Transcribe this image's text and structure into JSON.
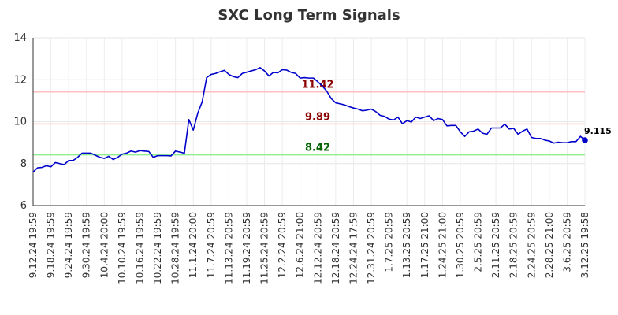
{
  "chart_data": {
    "type": "line",
    "title": "SXC Long Term Signals",
    "xlabel": "",
    "ylabel": "",
    "ylim": [
      6,
      14
    ],
    "yticks": [
      6,
      8,
      10,
      12,
      14
    ],
    "grid": true,
    "x_tick_labels": [
      "9.12.24 19:59",
      "9.18.24 19:59",
      "9.24.24 19:59",
      "9.30.24 19:59",
      "10.4.24 20:00",
      "10.10.24 19:59",
      "10.16.24 19:59",
      "10.22.24 19:59",
      "10.28.24 19:59",
      "11.1.24 20:00",
      "11.7.24 20:59",
      "11.13.24 20:59",
      "11.19.24 20:59",
      "11.25.24 20:59",
      "12.2.24 20:59",
      "12.6.24 21:00",
      "12.12.24 20:59",
      "12.18.24 20:59",
      "12.24.24 17:59",
      "12.31.24 20:59",
      "1.7.25 20:59",
      "1.13.25 20:59",
      "1.17.25 21:00",
      "1.24.25 21:00",
      "1.30.25 20:59",
      "2.5.25 20:59",
      "2.11.25 20:59",
      "2.18.25 20:59",
      "2.24.25 20:59",
      "2.28.25 21:00",
      "3.6.25 20:59",
      "3.12.25 19:58"
    ],
    "series": [
      {
        "color": "#0000cc",
        "values": [
          7.6,
          7.8,
          7.82,
          7.9,
          7.85,
          8.05,
          8.0,
          7.95,
          8.15,
          8.15,
          8.3,
          8.5,
          8.5,
          8.5,
          8.4,
          8.3,
          8.25,
          8.35,
          8.2,
          8.3,
          8.45,
          8.5,
          8.6,
          8.55,
          8.62,
          8.6,
          8.58,
          8.3,
          8.38,
          8.38,
          8.38,
          8.37,
          8.6,
          8.55,
          8.5,
          10.1,
          9.6,
          10.4,
          10.95,
          12.1,
          12.25,
          12.3,
          12.38,
          12.45,
          12.25,
          12.15,
          12.1,
          12.3,
          12.36,
          12.42,
          12.48,
          12.58,
          12.42,
          12.18,
          12.35,
          12.33,
          12.48,
          12.46,
          12.35,
          12.3,
          12.08,
          12.1,
          12.08,
          12.08,
          11.9,
          11.7,
          11.45,
          11.1,
          10.9,
          10.85,
          10.8,
          10.72,
          10.65,
          10.6,
          10.52,
          10.55,
          10.6,
          10.48,
          10.3,
          10.25,
          10.12,
          10.08,
          10.22,
          9.9,
          10.05,
          9.98,
          10.22,
          10.15,
          10.22,
          10.28,
          10.05,
          10.15,
          10.1,
          9.8,
          9.82,
          9.82,
          9.52,
          9.3,
          9.52,
          9.55,
          9.65,
          9.45,
          9.4,
          9.7,
          9.7,
          9.7,
          9.88,
          9.65,
          9.68,
          9.4,
          9.55,
          9.65,
          9.25,
          9.2,
          9.2,
          9.12,
          9.08,
          8.98,
          9.02,
          9.0,
          9.0,
          9.05,
          9.05,
          9.3,
          9.115
        ]
      }
    ],
    "levels": [
      {
        "value": 11.42,
        "label": "11.42",
        "line_color": "#ffc0c0",
        "text_color": "#8b0000"
      },
      {
        "value": 9.89,
        "label": "9.89",
        "line_color": "#ffc0c0",
        "text_color": "#8b0000"
      },
      {
        "value": 8.42,
        "label": "8.42",
        "line_color": "#90ee90",
        "text_color": "#006400"
      }
    ],
    "last_value": 9.115,
    "last_label": "9.115"
  }
}
